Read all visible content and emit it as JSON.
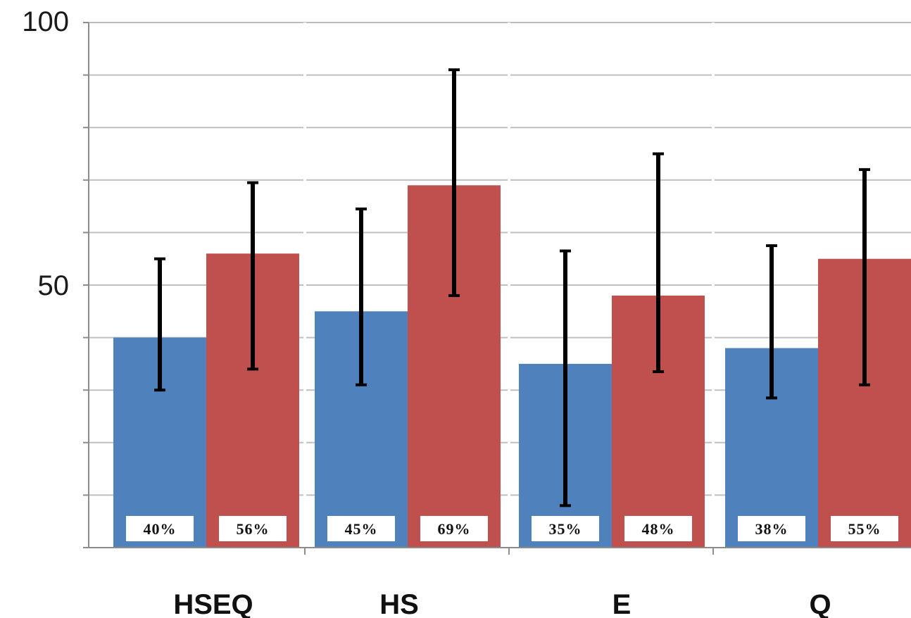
{
  "chart_data": {
    "type": "bar",
    "categories": [
      "HSEQ",
      "HS",
      "E",
      "Q"
    ],
    "series": [
      {
        "values": [
          40,
          45,
          35,
          38
        ],
        "labels": [
          "40%",
          "45%",
          "35%",
          "38%"
        ],
        "error_low": [
          30,
          31,
          8,
          28.5
        ],
        "error_high": [
          55,
          64.5,
          56.5,
          57.5
        ],
        "color": "#4f81bd"
      },
      {
        "values": [
          56,
          69,
          48,
          55
        ],
        "labels": [
          "56%",
          "69%",
          "48%",
          "55%"
        ],
        "error_low": [
          34,
          48,
          33.5,
          31
        ],
        "error_high": [
          69.5,
          91,
          75,
          72
        ],
        "color": "#c0504d"
      }
    ],
    "ylim": [
      0,
      100
    ],
    "y_tick_labels": [
      "100",
      "50"
    ],
    "grid": true,
    "legend": "none"
  }
}
